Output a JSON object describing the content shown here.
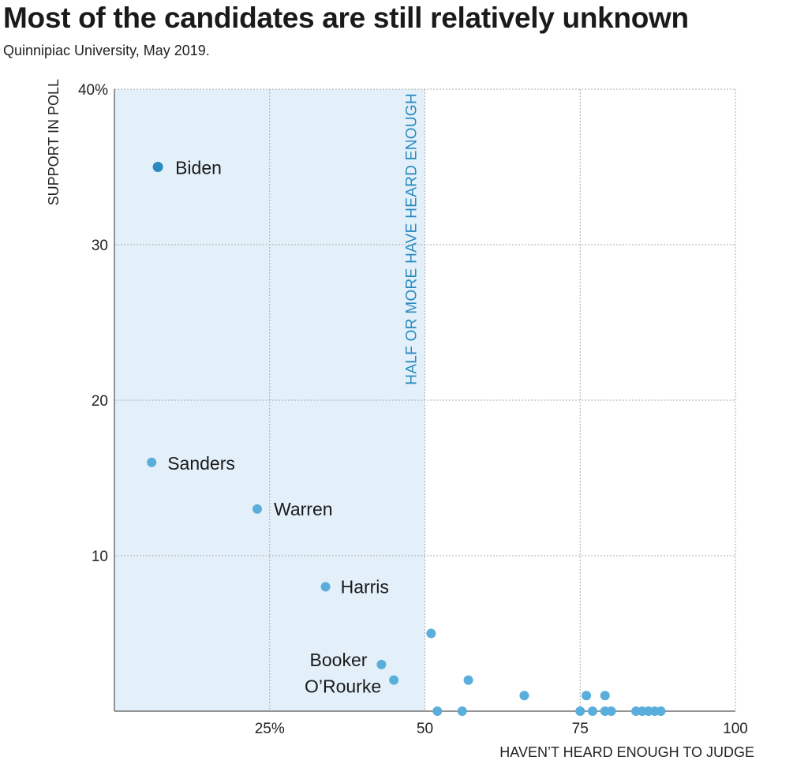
{
  "title": "Most of the candidates are still relatively unknown",
  "subtitle": "Quinnipiac University, May 2019.",
  "chart_data": {
    "type": "scatter",
    "xlabel": "HAVEN’T HEARD ENOUGH TO JUDGE",
    "ylabel": "SUPPORT IN POLL",
    "xlim": [
      0,
      100
    ],
    "ylim": [
      0,
      40
    ],
    "grid": true,
    "x_ticks": [
      {
        "value": 25,
        "label": "25%"
      },
      {
        "value": 50,
        "label": "50"
      },
      {
        "value": 75,
        "label": "75"
      },
      {
        "value": 100,
        "label": "100"
      }
    ],
    "y_ticks": [
      {
        "value": 10,
        "label": "10"
      },
      {
        "value": 20,
        "label": "20"
      },
      {
        "value": 30,
        "label": "30"
      },
      {
        "value": 40,
        "label": "40%"
      }
    ],
    "shaded_region": {
      "x_from": 0,
      "x_to": 50,
      "label": "HALF OR MORE HAVE HEARD ENOUGH",
      "color": "#e3f0fa"
    },
    "colors": {
      "point": "#5aaedb",
      "highlight": "#2a8abf",
      "grid": "#aaaaaa"
    },
    "points": [
      {
        "x": 7,
        "y": 35,
        "label": "Biden",
        "highlight": true
      },
      {
        "x": 6,
        "y": 16,
        "label": "Sanders"
      },
      {
        "x": 23,
        "y": 13,
        "label": "Warren"
      },
      {
        "x": 34,
        "y": 8,
        "label": "Harris"
      },
      {
        "x": 43,
        "y": 3,
        "label": "Booker"
      },
      {
        "x": 45,
        "y": 2,
        "label": "O’Rourke"
      },
      {
        "x": 51,
        "y": 5
      },
      {
        "x": 57,
        "y": 2
      },
      {
        "x": 66,
        "y": 1
      },
      {
        "x": 76,
        "y": 1
      },
      {
        "x": 79,
        "y": 1
      },
      {
        "x": 52,
        "y": 0
      },
      {
        "x": 56,
        "y": 0
      },
      {
        "x": 75,
        "y": 0
      },
      {
        "x": 77,
        "y": 0
      },
      {
        "x": 79,
        "y": 0
      },
      {
        "x": 80,
        "y": 0
      },
      {
        "x": 84,
        "y": 0
      },
      {
        "x": 85,
        "y": 0
      },
      {
        "x": 86,
        "y": 0
      },
      {
        "x": 87,
        "y": 0
      },
      {
        "x": 88,
        "y": 0
      }
    ]
  }
}
